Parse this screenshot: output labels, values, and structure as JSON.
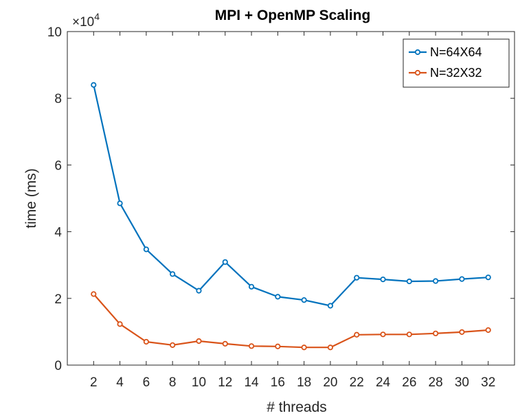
{
  "chart_data": {
    "type": "line",
    "title": "MPI + OpenMP Scaling",
    "xlabel": "# threads",
    "ylabel": "time (ms)",
    "x": [
      2,
      4,
      6,
      8,
      10,
      12,
      14,
      16,
      18,
      20,
      22,
      24,
      26,
      28,
      30,
      32
    ],
    "x_ticks": [
      "2",
      "4",
      "6",
      "8",
      "10",
      "12",
      "14",
      "16",
      "18",
      "20",
      "22",
      "24",
      "26",
      "28",
      "30",
      "32"
    ],
    "xlim": [
      0,
      34
    ],
    "ylim": [
      0,
      100000
    ],
    "y_ticks": [
      "0",
      "2",
      "4",
      "6",
      "8",
      "10"
    ],
    "y_exponent": {
      "base": "×10",
      "power": "4"
    },
    "grid": false,
    "legend_position": "top-right",
    "series": [
      {
        "name": "N=64X64",
        "color": "#0072BD",
        "values": [
          84000,
          48500,
          34700,
          27300,
          22300,
          30900,
          23500,
          20500,
          19500,
          17800,
          26200,
          25700,
          25100,
          25200,
          25800,
          26300
        ]
      },
      {
        "name": "N=32X32",
        "color": "#D95319",
        "values": [
          21300,
          12300,
          7000,
          6000,
          7200,
          6400,
          5700,
          5600,
          5300,
          5300,
          9100,
          9200,
          9200,
          9500,
          9900,
          10500
        ]
      }
    ]
  }
}
